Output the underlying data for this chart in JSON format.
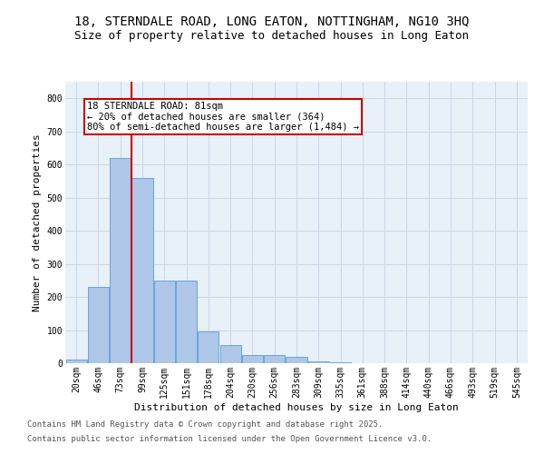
{
  "title1": "18, STERNDALE ROAD, LONG EATON, NOTTINGHAM, NG10 3HQ",
  "title2": "Size of property relative to detached houses in Long Eaton",
  "xlabel": "Distribution of detached houses by size in Long Eaton",
  "ylabel": "Number of detached properties",
  "categories": [
    "20sqm",
    "46sqm",
    "73sqm",
    "99sqm",
    "125sqm",
    "151sqm",
    "178sqm",
    "204sqm",
    "230sqm",
    "256sqm",
    "283sqm",
    "309sqm",
    "335sqm",
    "361sqm",
    "388sqm",
    "414sqm",
    "440sqm",
    "466sqm",
    "493sqm",
    "519sqm",
    "545sqm"
  ],
  "values": [
    10,
    230,
    620,
    560,
    250,
    250,
    95,
    55,
    25,
    25,
    20,
    5,
    2,
    1,
    0,
    0,
    0,
    0,
    0,
    0,
    0
  ],
  "bar_color": "#aec6e8",
  "bar_edge_color": "#5b9bd5",
  "vline_x": 2.5,
  "vline_color": "#cc0000",
  "annotation_text": "18 STERNDALE ROAD: 81sqm\n← 20% of detached houses are smaller (364)\n80% of semi-detached houses are larger (1,484) →",
  "annotation_box_color": "#ffffff",
  "annotation_box_edge": "#cc0000",
  "ylim": [
    0,
    850
  ],
  "yticks": [
    0,
    100,
    200,
    300,
    400,
    500,
    600,
    700,
    800
  ],
  "grid_color": "#c8d8e8",
  "bg_color": "#e8f0f8",
  "footer1": "Contains HM Land Registry data © Crown copyright and database right 2025.",
  "footer2": "Contains public sector information licensed under the Open Government Licence v3.0.",
  "title_fontsize": 10,
  "subtitle_fontsize": 9,
  "axis_label_fontsize": 8,
  "tick_fontsize": 7,
  "annotation_fontsize": 7.5,
  "footer_fontsize": 6.5
}
